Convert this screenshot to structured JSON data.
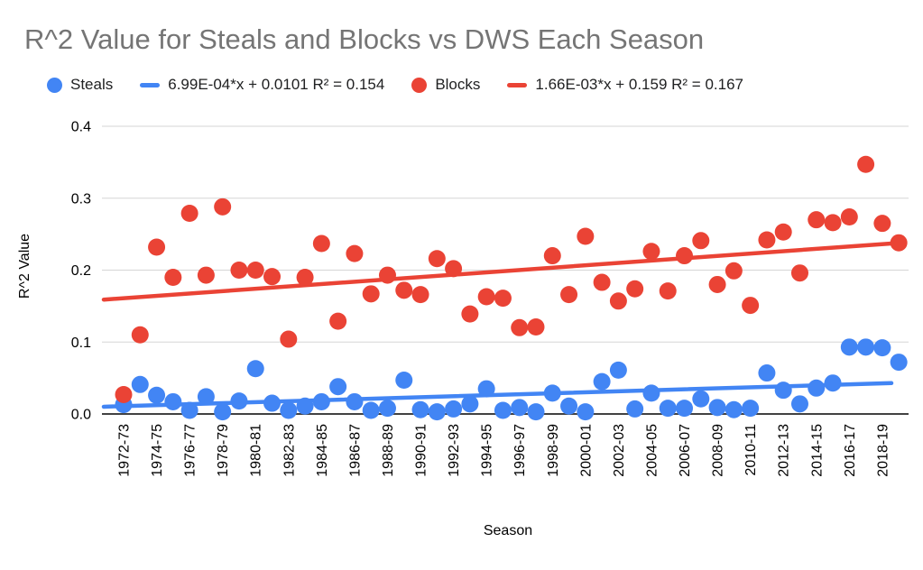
{
  "title": "R^2 Value for Steals and Blocks vs DWS Each Season",
  "legend": {
    "items": [
      {
        "type": "series",
        "label": "Steals",
        "color": "#4285F4",
        "marker": "circle"
      },
      {
        "type": "trendline",
        "label": "6.99E-04*x + 0.0101 R² = 0.154",
        "color": "#4285F4",
        "marker": "line"
      },
      {
        "type": "series",
        "label": "Blocks",
        "color": "#EA4335",
        "marker": "circle"
      },
      {
        "type": "trendline",
        "label": "1.66E-03*x + 0.159 R² = 0.167",
        "color": "#EA4335",
        "marker": "line"
      }
    ]
  },
  "chart_data": {
    "type": "scatter",
    "title": "R^2 Value for Steals and Blocks vs DWS Each Season",
    "xlabel": "Season",
    "ylabel": "R^2 Value",
    "ylim": [
      0,
      0.4
    ],
    "y_ticks": [
      0.0,
      0.1,
      0.2,
      0.3,
      0.4
    ],
    "y_tick_labels": [
      "0.0",
      "0.1",
      "0.2",
      "0.3",
      "0.4"
    ],
    "grid": true,
    "legend_position": "top",
    "x_tick_label_every": 2,
    "x_categories": [
      "1972-73",
      "1973-74",
      "1974-75",
      "1975-76",
      "1976-77",
      "1977-78",
      "1978-79",
      "1979-80",
      "1980-81",
      "1981-82",
      "1982-83",
      "1983-84",
      "1984-85",
      "1985-86",
      "1986-87",
      "1987-88",
      "1988-89",
      "1989-90",
      "1990-91",
      "1991-92",
      "1992-93",
      "1993-94",
      "1994-95",
      "1995-96",
      "1996-97",
      "1997-98",
      "1998-99",
      "1999-00",
      "2000-01",
      "2001-02",
      "2002-03",
      "2003-04",
      "2004-05",
      "2005-06",
      "2006-07",
      "2007-08",
      "2008-09",
      "2009-10",
      "2010-11",
      "2011-12",
      "2012-13",
      "2013-14",
      "2014-15",
      "2015-16",
      "2016-17",
      "2017-18",
      "2018-19",
      "2019-20"
    ],
    "series": [
      {
        "name": "Steals",
        "color": "#4285F4",
        "values": [
          0.013,
          0.041,
          0.026,
          0.017,
          0.005,
          0.024,
          0.003,
          0.018,
          0.063,
          0.015,
          0.005,
          0.011,
          0.017,
          0.038,
          0.017,
          0.005,
          0.008,
          0.047,
          0.006,
          0.003,
          0.007,
          0.014,
          0.035,
          0.005,
          0.009,
          0.003,
          0.029,
          0.011,
          0.003,
          0.045,
          0.061,
          0.007,
          0.029,
          0.008,
          0.008,
          0.021,
          0.009,
          0.006,
          0.008,
          0.057,
          0.033,
          0.014,
          0.036,
          0.043,
          0.093,
          0.093,
          0.092,
          0.072
        ]
      },
      {
        "name": "Blocks",
        "color": "#EA4335",
        "values": [
          0.027,
          0.11,
          0.232,
          0.19,
          0.279,
          0.193,
          0.288,
          0.2,
          0.2,
          0.191,
          0.104,
          0.19,
          0.237,
          0.129,
          0.223,
          0.167,
          0.193,
          0.172,
          0.166,
          0.216,
          0.202,
          0.139,
          0.163,
          0.161,
          0.12,
          0.121,
          0.22,
          0.166,
          0.247,
          0.183,
          0.157,
          0.174,
          0.226,
          0.171,
          0.22,
          0.241,
          0.18,
          0.199,
          0.151,
          0.242,
          0.253,
          0.196,
          0.27,
          0.266,
          0.274,
          0.347,
          0.265,
          0.238
        ]
      }
    ],
    "trendlines": [
      {
        "series": "Steals",
        "label": "6.99E-04*x + 0.0101 R² = 0.154",
        "color": "#4285F4",
        "slope": "6.99E-04",
        "intercept": "0.0101",
        "r_squared": "0.154",
        "start_value": 0.0101,
        "end_value": 0.0429
      },
      {
        "series": "Blocks",
        "label": "1.66E-03*x + 0.159 R² = 0.167",
        "color": "#EA4335",
        "slope": "1.66E-03",
        "intercept": "0.159",
        "r_squared": "0.167",
        "start_value": 0.159,
        "end_value": 0.237
      }
    ]
  }
}
